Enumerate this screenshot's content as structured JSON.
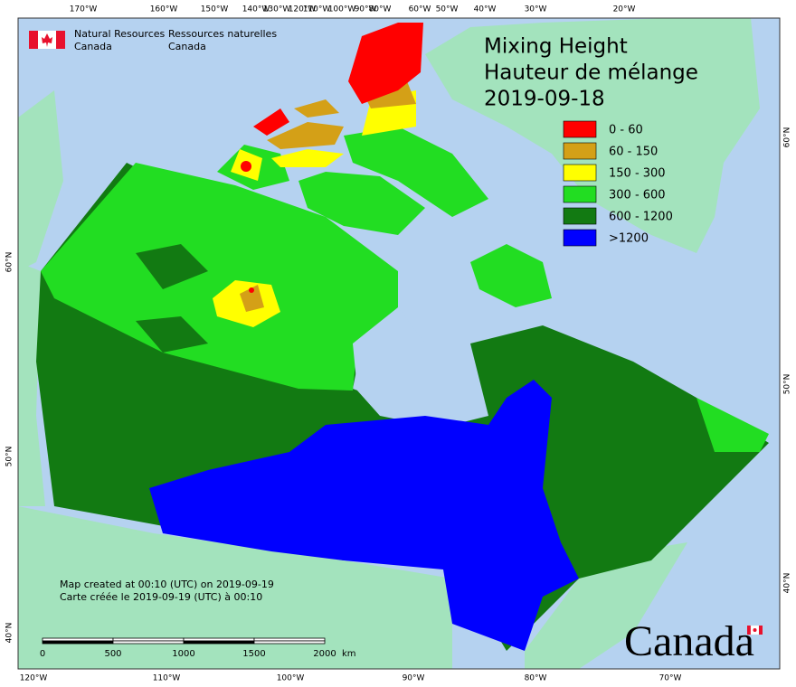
{
  "header": {
    "agency_en": [
      "Natural Resources",
      "Canada"
    ],
    "agency_fr": [
      "Ressources naturelles",
      "Canada"
    ]
  },
  "title": [
    "Mixing Height",
    "Hauteur de mélange",
    "2019-09-18"
  ],
  "legend": [
    {
      "label": "0 - 60",
      "color": "#ff0000"
    },
    {
      "label": "60 - 150",
      "color": "#d4a017"
    },
    {
      "label": "150 - 300",
      "color": "#ffff00"
    },
    {
      "label": "300 - 600",
      "color": "#22dd22"
    },
    {
      "label": ">1200",
      "color": "#0000ff"
    }
  ],
  "legend_dark": {
    "label": "600 - 1200",
    "color": "#127a12"
  },
  "graticule": {
    "top": [
      "170°W",
      "160°W",
      "150°W",
      "140°W",
      "130°W",
      "120°W",
      "110°W",
      "100°W",
      "90°W",
      "80°W",
      "60°W",
      "50°W",
      "40°W",
      "30°W",
      "20°W"
    ],
    "bottom": [
      "120°W",
      "110°W",
      "100°W",
      "90°W",
      "80°W",
      "70°W"
    ],
    "left": [
      "60°N",
      "50°N",
      "40°N"
    ],
    "right": [
      "60°N",
      "50°N",
      "40°N"
    ]
  },
  "scale_bar": {
    "ticks": [
      0,
      500,
      1000,
      1500,
      2000
    ],
    "unit": "km"
  },
  "footer": [
    "Map created at 00:10 (UTC) on 2019-09-19",
    "Carte créée le 2019-09-19 (UTC) à 00:10"
  ],
  "wordmark": "Canada"
}
